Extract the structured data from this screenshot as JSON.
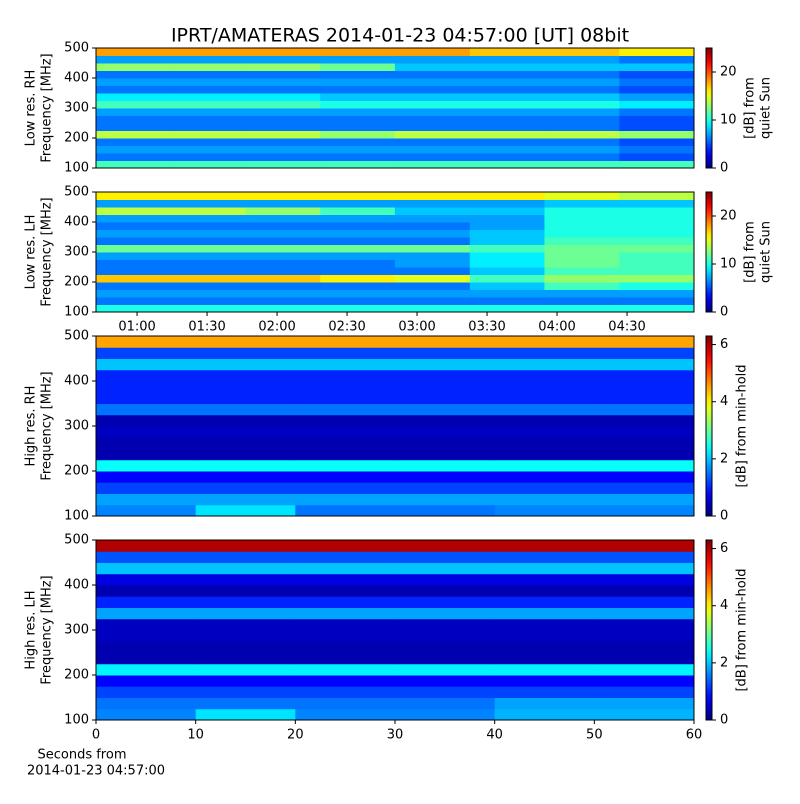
{
  "chart_data": [
    {
      "type": "heatmap",
      "title": "IPRT/AMATERAS 2014-01-23 04:57:00 [UT]   08bit",
      "ylabel": [
        "Low res. RH",
        "Frequency [MHz]"
      ],
      "zlabel": [
        "[dB] from",
        "quiet Sun"
      ],
      "colormap": "jet",
      "xlim": [
        42.4,
        298.7
      ],
      "ylim": [
        100,
        500
      ],
      "yticks": [
        100,
        200,
        300,
        400,
        500
      ],
      "zlim": [
        0,
        25
      ],
      "zticks": [
        0,
        10,
        20
      ],
      "x_edges": [
        42.4,
        74.4,
        106.5,
        138.5,
        170.5,
        202.6,
        234.6,
        266.7,
        298.7
      ],
      "y_edges": [
        100,
        125,
        150,
        175,
        200,
        225,
        250,
        275,
        300,
        325,
        350,
        375,
        400,
        425,
        450,
        475,
        500
      ],
      "z": [
        [
          11,
          11,
          11,
          11,
          11,
          11,
          11,
          11
        ],
        [
          6,
          6,
          6,
          6,
          6,
          6,
          6,
          5
        ],
        [
          7,
          7,
          7,
          7,
          7,
          7,
          7,
          6
        ],
        [
          6,
          6,
          6,
          6,
          6,
          6,
          6,
          5
        ],
        [
          14,
          14,
          14,
          13,
          14,
          14,
          14,
          13
        ],
        [
          6,
          6,
          6,
          6,
          6,
          6,
          6,
          5
        ],
        [
          6,
          6,
          6,
          6,
          6,
          6,
          6,
          5
        ],
        [
          7,
          7,
          7,
          7,
          7,
          7,
          7,
          6
        ],
        [
          11,
          11,
          11,
          10,
          10,
          10,
          10,
          9
        ],
        [
          9,
          9,
          9,
          8,
          8,
          8,
          8,
          7
        ],
        [
          6,
          6,
          6,
          6,
          6,
          6,
          6,
          5
        ],
        [
          7,
          7,
          7,
          7,
          7,
          7,
          7,
          6
        ],
        [
          6,
          6,
          6,
          6,
          6,
          6,
          6,
          5
        ],
        [
          13,
          13,
          13,
          12,
          8,
          8,
          8,
          8
        ],
        [
          7,
          7,
          7,
          7,
          7,
          7,
          7,
          6
        ],
        [
          18,
          18,
          18,
          18,
          18,
          17,
          17,
          16
        ]
      ]
    },
    {
      "type": "heatmap",
      "ylabel": [
        "Low res. LH",
        "Frequency [MHz]"
      ],
      "zlabel": [
        "[dB] from",
        "quiet Sun"
      ],
      "colormap": "jet",
      "xlim": [
        42.4,
        298.7
      ],
      "ylim": [
        100,
        500
      ],
      "yticks": [
        100,
        200,
        300,
        400,
        500
      ],
      "xticks": [
        {
          "value": 60,
          "label": "01:00"
        },
        {
          "value": 90,
          "label": "01:30"
        },
        {
          "value": 120,
          "label": "02:00"
        },
        {
          "value": 150,
          "label": "02:30"
        },
        {
          "value": 180,
          "label": "03:00"
        },
        {
          "value": 210,
          "label": "03:30"
        },
        {
          "value": 240,
          "label": "04:00"
        },
        {
          "value": 270,
          "label": "04:30"
        }
      ],
      "zlim": [
        0,
        25
      ],
      "zticks": [
        0,
        10,
        20
      ],
      "x_edges": [
        42.4,
        74.4,
        106.5,
        138.5,
        170.5,
        202.6,
        234.6,
        266.7,
        298.7
      ],
      "y_edges": [
        100,
        125,
        150,
        175,
        200,
        225,
        250,
        275,
        300,
        325,
        350,
        375,
        400,
        425,
        450,
        475,
        500
      ],
      "z": [
        [
          10,
          10,
          10,
          10,
          10,
          10,
          10,
          10
        ],
        [
          6,
          6,
          6,
          6,
          6,
          6,
          6,
          6
        ],
        [
          7,
          7,
          7,
          7,
          7,
          7,
          7,
          7
        ],
        [
          6,
          6,
          6,
          6,
          6,
          8,
          11,
          10
        ],
        [
          17,
          17,
          17,
          16,
          15,
          11,
          13,
          13
        ],
        [
          6,
          6,
          6,
          6,
          6,
          8,
          11,
          11
        ],
        [
          6,
          6,
          6,
          6,
          7,
          9,
          12,
          11
        ],
        [
          7,
          7,
          7,
          7,
          7,
          9,
          12,
          11
        ],
        [
          12,
          12,
          12,
          12,
          12,
          11,
          12,
          12
        ],
        [
          6,
          6,
          6,
          6,
          6,
          8,
          11,
          11
        ],
        [
          7,
          7,
          7,
          7,
          7,
          8,
          10,
          10
        ],
        [
          6,
          6,
          6,
          6,
          6,
          7,
          10,
          10
        ],
        [
          7,
          7,
          7,
          7,
          7,
          7,
          10,
          10
        ],
        [
          14,
          14,
          13,
          11,
          8,
          8,
          10,
          10
        ],
        [
          7,
          7,
          7,
          7,
          7,
          7,
          8,
          8
        ],
        [
          16,
          16,
          16,
          16,
          16,
          16,
          15,
          14
        ]
      ]
    },
    {
      "type": "heatmap",
      "ylabel": [
        "High res. RH",
        "Frequency [MHz]"
      ],
      "zlabel": [
        "[dB] from min-hold"
      ],
      "colormap": "jet",
      "xlim": [
        0,
        60
      ],
      "ylim": [
        100,
        500
      ],
      "yticks": [
        100,
        200,
        300,
        400,
        500
      ],
      "zlim": [
        0,
        6.3
      ],
      "zticks": [
        0,
        2,
        4,
        6
      ],
      "x_edges": [
        0,
        10,
        20,
        30,
        40,
        50,
        60
      ],
      "y_edges": [
        100,
        125,
        150,
        175,
        200,
        225,
        250,
        275,
        300,
        325,
        350,
        375,
        400,
        425,
        450,
        475,
        500
      ],
      "z": [
        [
          1.6,
          2.2,
          1.5,
          1.5,
          1.6,
          1.6
        ],
        [
          1.8,
          1.8,
          1.8,
          1.8,
          1.8,
          1.8
        ],
        [
          1.2,
          1.2,
          1.2,
          1.2,
          1.2,
          1.2
        ],
        [
          0.8,
          0.8,
          0.8,
          0.8,
          0.8,
          0.8
        ],
        [
          2.4,
          2.4,
          2.4,
          2.4,
          2.4,
          2.4
        ],
        [
          0.3,
          0.3,
          0.3,
          0.3,
          0.3,
          0.3
        ],
        [
          0.3,
          0.3,
          0.3,
          0.3,
          0.3,
          0.3
        ],
        [
          0.4,
          0.4,
          0.4,
          0.4,
          0.4,
          0.4
        ],
        [
          0.3,
          0.3,
          0.3,
          0.3,
          0.3,
          0.3
        ],
        [
          1.5,
          1.5,
          1.5,
          1.5,
          1.5,
          1.5
        ],
        [
          1,
          1,
          1,
          1,
          1,
          1
        ],
        [
          1,
          1,
          1,
          1,
          1,
          1
        ],
        [
          1,
          1,
          1,
          1,
          1,
          1
        ],
        [
          2,
          2,
          2,
          2,
          2,
          2
        ],
        [
          1.2,
          1.2,
          1.2,
          1.2,
          1.2,
          1.2
        ],
        [
          4.5,
          4.5,
          4.5,
          4.5,
          4.5,
          4.5
        ]
      ]
    },
    {
      "type": "heatmap",
      "ylabel": [
        "High res. LH",
        "Frequency [MHz]"
      ],
      "zlabel": [
        "[dB] from min-hold"
      ],
      "colormap": "jet",
      "xlim": [
        0,
        60
      ],
      "ylim": [
        100,
        500
      ],
      "yticks": [
        100,
        200,
        300,
        400,
        500
      ],
      "xticks": [
        0,
        10,
        20,
        30,
        40,
        50,
        60
      ],
      "xlabel": [
        "Seconds from",
        "2014-01-23 04:57:00"
      ],
      "zlim": [
        0,
        6.3
      ],
      "zticks": [
        0,
        2,
        4,
        6
      ],
      "x_edges": [
        0,
        10,
        20,
        30,
        40,
        50,
        60
      ],
      "y_edges": [
        100,
        125,
        150,
        175,
        200,
        225,
        250,
        275,
        300,
        325,
        350,
        375,
        400,
        425,
        450,
        475,
        500
      ],
      "z": [
        [
          1.6,
          2.2,
          1.6,
          1.6,
          1.9,
          1.9
        ],
        [
          1.5,
          1.5,
          1.5,
          1.5,
          1.8,
          1.8
        ],
        [
          1.2,
          1.2,
          1.2,
          1.2,
          1.2,
          1.2
        ],
        [
          0.8,
          0.8,
          0.8,
          0.8,
          0.8,
          0.8
        ],
        [
          2.3,
          2.3,
          2.3,
          2.3,
          2.3,
          2.3
        ],
        [
          0.3,
          0.3,
          0.3,
          0.3,
          0.3,
          0.3
        ],
        [
          0.3,
          0.3,
          0.3,
          0.3,
          0.3,
          0.3
        ],
        [
          0.4,
          0.4,
          0.4,
          0.4,
          0.4,
          0.4
        ],
        [
          0.4,
          0.4,
          0.4,
          0.4,
          0.4,
          0.4
        ],
        [
          1.8,
          1.8,
          1.8,
          1.8,
          1.8,
          1.8
        ],
        [
          1,
          1,
          1,
          1,
          1,
          1
        ],
        [
          0.3,
          0.3,
          0.3,
          0.3,
          0.3,
          0.3
        ],
        [
          0.6,
          0.6,
          0.6,
          0.6,
          0.6,
          0.6
        ],
        [
          2,
          2,
          2,
          2,
          2,
          2
        ],
        [
          1.3,
          1.3,
          1.3,
          1.3,
          1.3,
          1.3
        ],
        [
          6,
          6,
          6,
          6,
          6,
          6
        ]
      ]
    }
  ]
}
